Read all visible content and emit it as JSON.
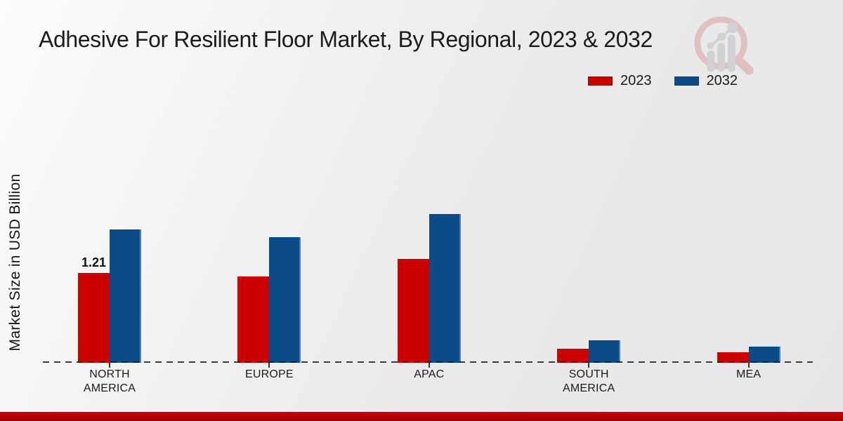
{
  "chart_data": {
    "type": "bar",
    "title": "Adhesive For Resilient Floor Market, By Regional, 2023 & 2032",
    "ylabel": "Market Size in USD Billion",
    "xlabel": "",
    "categories": [
      "NORTH AMERICA",
      "EUROPE",
      "APAC",
      "SOUTH AMERICA",
      "MEA"
    ],
    "categories_display": [
      [
        "NORTH",
        "AMERICA"
      ],
      [
        "EUROPE"
      ],
      [
        "APAC"
      ],
      [
        "SOUTH",
        "AMERICA"
      ],
      [
        "MEA"
      ]
    ],
    "series": [
      {
        "name": "2023",
        "color": "#cc0000",
        "values": [
          1.21,
          1.16,
          1.4,
          0.19,
          0.14
        ],
        "point_labels": [
          "1.21",
          "",
          "",
          "",
          ""
        ]
      },
      {
        "name": "2032",
        "color": "#0a4b88",
        "values": [
          1.79,
          1.69,
          2.0,
          0.3,
          0.22
        ],
        "point_labels": [
          "",
          "",
          "",
          "",
          ""
        ]
      }
    ],
    "ylim": [
      0,
      2.2
    ],
    "grid": "off",
    "legend_position": "top-right",
    "baseline_style": "dashed",
    "y_axis_ticks_visible": false
  },
  "branding": {
    "watermark_icon": "magnifier-bar-chart-logo",
    "accent_stripe_color": "#b80000",
    "watermark_pink": "#d9a0a0",
    "watermark_gray": "#bfbfc4"
  }
}
